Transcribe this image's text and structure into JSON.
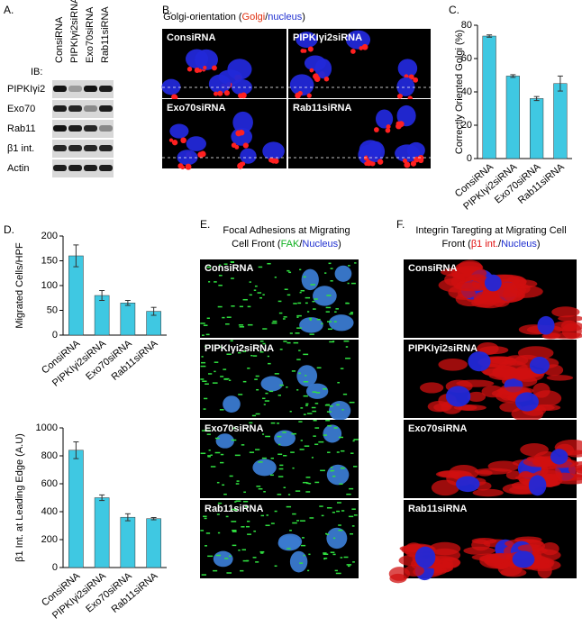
{
  "panels": {
    "A": {
      "label": "A.",
      "ib": "IB:",
      "lanes": [
        "ConsiRNA",
        "PIPKIγi2siRNA",
        "Exo70siRNA",
        "Rab11siRNA"
      ],
      "rows": [
        "PIPKIγi2",
        "Exo70",
        "Rab11",
        "β1 int.",
        "Actin"
      ]
    },
    "B": {
      "label": "B.",
      "title": [
        "Golgi-orientation (",
        "Golgi",
        "/",
        "nucleus",
        ")"
      ],
      "images": [
        "ConsiRNA",
        "PIPKIγi2siRNA",
        "Exo70siRNA",
        "Rab11siRNA"
      ]
    },
    "C": {
      "label": "C."
    },
    "D": {
      "label": "D."
    },
    "E": {
      "label": "E.",
      "title_line1": "Focal Adhesions at Migrating",
      "title_line2": [
        "Cell Front (",
        "FAK",
        "/",
        "Nucleus",
        ")"
      ],
      "images": [
        "ConsiRNA",
        "PIPKIγi2siRNA",
        "Exo70siRNA",
        "Rab11siRNA"
      ]
    },
    "F": {
      "label": "F.",
      "title_line1": "Integrin Taregting at Migrating Cell",
      "title_line2": [
        "Front (",
        "β1 int.",
        "/",
        "Nucleus",
        ")"
      ],
      "images": [
        "ConsiRNA",
        "PIPKIγi2siRNA",
        "Exo70siRNA",
        "Rab11siRNA"
      ]
    }
  },
  "chart_data": [
    {
      "type": "bar",
      "ylabel": "Correctly Oriented Golgi (%)",
      "categories": [
        "ConsiRNA",
        "PIPKIγi2siRNA",
        "Exo70siRNA",
        "Rab11siRNA"
      ],
      "values": [
        73.5,
        49.5,
        36,
        45
      ],
      "errors": [
        0.7,
        0.8,
        1.2,
        4.5
      ],
      "color": "#3fc8e2",
      "ylim": [
        0,
        80
      ],
      "yticks": [
        0,
        20,
        40,
        60,
        80
      ]
    },
    {
      "type": "bar",
      "ylabel": "Migrated Cells/HPF",
      "categories": [
        "ConsiRNA",
        "PIPKIγi2siRNA",
        "Exo70siRNA",
        "Rab11siRNA"
      ],
      "values": [
        160,
        80,
        65,
        48
      ],
      "errors": [
        22,
        10,
        5,
        8
      ],
      "color": "#3fc8e2",
      "ylim": [
        0,
        200
      ],
      "yticks": [
        0,
        50,
        100,
        150,
        200
      ]
    },
    {
      "type": "bar",
      "ylabel": "β1 Int. at Leading Edge (A.U)",
      "categories": [
        "ConsiRNA",
        "PIPKIγi2siRNA",
        "Exo70siRNA",
        "Rab11siRNA"
      ],
      "values": [
        840,
        500,
        360,
        350
      ],
      "errors": [
        60,
        20,
        25,
        8
      ],
      "color": "#3fc8e2",
      "ylim": [
        0,
        1000
      ],
      "yticks": [
        0,
        200,
        400,
        600,
        800,
        1000
      ]
    }
  ]
}
